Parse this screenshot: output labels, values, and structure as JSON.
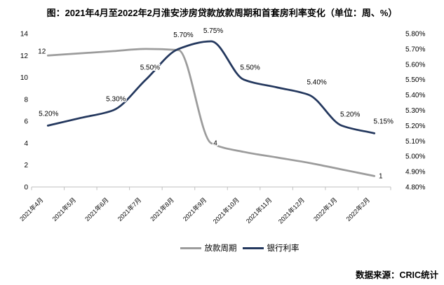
{
  "title": "图：2021年4月至2022年2月淮安涉房贷款放款周期和首套房利率变化（单位：周、%）",
  "source": "数据来源：CRIC统计",
  "legend": [
    {
      "label": "放款周期",
      "color": "#9c9c9c"
    },
    {
      "label": "银行利率",
      "color": "#24385e"
    }
  ],
  "colors": {
    "loan_period_line": "#9c9c9c",
    "bank_rate_line": "#24385e",
    "axis_line": "#bfbfbf",
    "text": "#000000"
  },
  "chart_data": {
    "type": "line",
    "title": "图：2021年4月至2022年2月淮安涉房贷款放款周期和首套房利率变化（单位：周、%）",
    "categories": [
      "2021年4月",
      "2021年5月",
      "2021年6月",
      "2021年7月",
      "2021年8月",
      "2021年9月",
      "2021年10月",
      "2021年11月",
      "2021年12月",
      "2022年1月",
      "2022年2月"
    ],
    "grid": false,
    "legend_position": "bottom",
    "left_axis": {
      "min": 0,
      "max": 14,
      "step": 2,
      "ticks": [
        "0",
        "2",
        "4",
        "6",
        "8",
        "10",
        "12",
        "14"
      ]
    },
    "right_axis": {
      "min": 4.8,
      "max": 5.8,
      "step": 0.1,
      "ticks": [
        "4.80%",
        "4.90%",
        "5.00%",
        "5.10%",
        "5.20%",
        "5.30%",
        "5.40%",
        "5.50%",
        "5.60%",
        "5.70%",
        "5.80%"
      ]
    },
    "series": [
      {
        "name": "放款周期",
        "axis": "left",
        "color": "#9c9c9c",
        "unit": "周",
        "values": [
          12,
          12.2,
          12.4,
          12.6,
          12.5,
          4,
          3.2,
          2.7,
          2.2,
          1.6,
          1
        ],
        "labels": [
          {
            "index": 0,
            "text": "12",
            "dx": -3,
            "dy": -3,
            "anchor": "end"
          },
          {
            "index": 5,
            "text": "4",
            "dx": 6,
            "dy": 3,
            "anchor": "middle"
          },
          {
            "index": 10,
            "text": "1",
            "dx": 9,
            "dy": 3,
            "anchor": "middle"
          }
        ]
      },
      {
        "name": "银行利率",
        "axis": "right",
        "color": "#24385e",
        "unit": "%",
        "values": [
          5.2,
          5.25,
          5.3,
          5.5,
          5.7,
          5.75,
          5.5,
          5.45,
          5.4,
          5.2,
          5.15
        ],
        "labels": [
          {
            "index": 0,
            "text": "5.20%",
            "dx": 1,
            "dy": -14,
            "anchor": "middle"
          },
          {
            "index": 2,
            "text": "5.30%",
            "dx": 4,
            "dy": -13,
            "anchor": "middle"
          },
          {
            "index": 3,
            "text": "5.50%",
            "dx": 6,
            "dy": -14,
            "anchor": "middle"
          },
          {
            "index": 4,
            "text": "5.70%",
            "dx": 7,
            "dy": -17,
            "anchor": "middle"
          },
          {
            "index": 5,
            "text": "5.75%",
            "dx": 3,
            "dy": -12,
            "anchor": "middle"
          },
          {
            "index": 6,
            "text": "5.50%",
            "dx": 9,
            "dy": -14,
            "anchor": "middle"
          },
          {
            "index": 8,
            "text": "5.40%",
            "dx": 11,
            "dy": -15,
            "anchor": "middle"
          },
          {
            "index": 9,
            "text": "5.20%",
            "dx": 12,
            "dy": -13,
            "anchor": "middle"
          },
          {
            "index": 10,
            "text": "5.15%",
            "dx": 13,
            "dy": -14,
            "anchor": "middle"
          }
        ]
      }
    ]
  }
}
